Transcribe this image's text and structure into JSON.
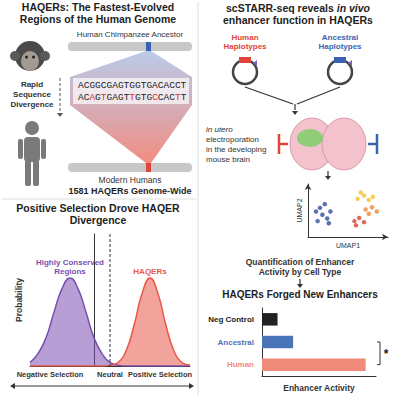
{
  "evolution_panel": {
    "title": "HAQERs: The Fastest-Evolved Regions of the Human Genome",
    "ancestor_label": "Human Chimpanzee Ancestor",
    "ancestral_sequence": "ACGGCGAGTGGTGACACCT",
    "human_sequence": "ACAGTGAGTTGTGCCACTT",
    "divergence_label": "Rapid Sequence Divergence",
    "modern_label": "Modern Humans",
    "count_label": "1581 HAQERs Genome-Wide"
  },
  "assay_panel": {
    "title": "scSTARR-seq reveals in vivo enhancer function in HAQERs",
    "italic": [
      "in vivo",
      "in utero"
    ],
    "human_label": "Human Haplotypes",
    "human_color": "#e0443a",
    "ancestral_label": "Ancestral Haplotypes",
    "ancestral_color": "#3b62b0",
    "delivery_label": "in utero electroporation in the developing mouse brain",
    "quantification_label": "Quantification of Enhancer Activity by Cell Type"
  },
  "chart_data": [
    {
      "type": "line",
      "title": "Positive Selection Drove HAQER Divergence",
      "y_label": "Probability",
      "x_annotations": [
        "Negative Selection",
        "Neutral",
        "Positive Selection"
      ],
      "x": [
        -4,
        -3.5,
        -3,
        -2.5,
        -2,
        -1.5,
        -1,
        -0.5,
        0,
        0.5,
        1,
        1.5,
        2,
        2.5,
        3,
        3.5,
        4,
        4.5,
        5,
        5.5,
        6
      ],
      "series": [
        {
          "name": "Highly Conserved Regions",
          "color": "#7b4fb0",
          "values": [
            0.04,
            0.14,
            0.32,
            0.61,
            0.88,
            1,
            0.88,
            0.61,
            0.32,
            0.14,
            0.04,
            0.01,
            0,
            0,
            0,
            0,
            0,
            0,
            0,
            0,
            0
          ]
        },
        {
          "name": "HAQERs",
          "color": "#e8594a",
          "values": [
            0,
            0,
            0,
            0,
            0,
            0,
            0,
            0,
            0,
            0,
            0.01,
            0.04,
            0.17,
            0.46,
            0.82,
            1,
            0.82,
            0.46,
            0.17,
            0.04,
            0.01
          ]
        }
      ],
      "xlim": [
        -4,
        6
      ],
      "ylim": [
        0,
        1.5
      ],
      "tick_labels": false,
      "grid": false
    },
    {
      "type": "scatter",
      "x_label": "UMAP1",
      "y_label": "UMAP2",
      "xlim": [
        0,
        10
      ],
      "ylim": [
        0,
        10
      ],
      "tick_labels": false,
      "grid": false,
      "series": [
        {
          "color": "#2f4f9f",
          "x": [
            1.2,
            1.8,
            2.4,
            1.5,
            2.8,
            2.1,
            1.0,
            2.6
          ],
          "y": [
            3,
            4.2,
            3.5,
            5.5,
            4.8,
            6.2,
            4.8,
            2.6
          ]
        },
        {
          "color": "#f2c230",
          "x": [
            6.2,
            7.0,
            7.6,
            6.6,
            8.1
          ],
          "y": [
            7.2,
            7.8,
            7.0,
            8.4,
            7.6
          ]
        },
        {
          "color": "#f08a3a",
          "x": [
            7.2,
            8.0,
            8.6,
            7.6
          ],
          "y": [
            5.2,
            5.6,
            4.8,
            4.4
          ]
        },
        {
          "color": "#d9432f",
          "x": [
            5.8,
            6.4,
            7.0,
            6.0
          ],
          "y": [
            3.0,
            3.6,
            2.8,
            2.2
          ]
        }
      ]
    },
    {
      "type": "bar",
      "orientation": "horizontal",
      "title": "HAQERs Forged New Enhancers",
      "x_label": "Enhancer Activity",
      "categories": [
        "Neg Control",
        "Ancestral",
        "Human"
      ],
      "values": [
        0.15,
        0.3,
        1.0
      ],
      "colors": [
        "#222222",
        "#4a74b8",
        "#f08a7a"
      ],
      "xlim": [
        0,
        1.1
      ],
      "tick_labels": "y",
      "grid": false,
      "annotation": "*"
    }
  ]
}
